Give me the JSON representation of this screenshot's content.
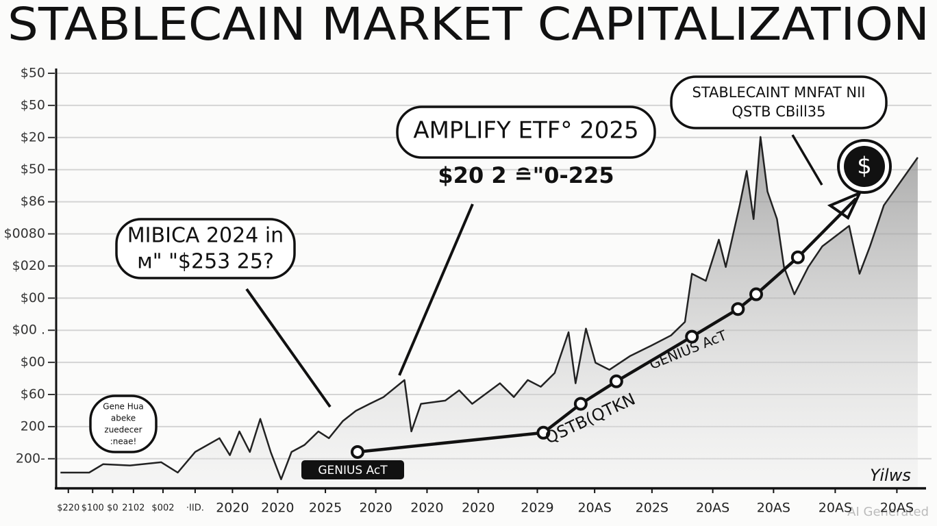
{
  "chart_data": {
    "type": "line",
    "title": "STABLECAIN MARKET CAPITALIZATION",
    "xlim": [
      0,
      100
    ],
    "xticks": [
      {
        "value": 1.4,
        "label": "$220"
      },
      {
        "value": 4.2,
        "label": "$100"
      },
      {
        "value": 6.5,
        "label": "$0"
      },
      {
        "value": 8.9,
        "label": "2102"
      },
      {
        "value": 12.3,
        "label": "$002"
      },
      {
        "value": 16.0,
        "label": "·ІІD."
      },
      {
        "value": 20.3,
        "label": "2020"
      },
      {
        "value": 25.5,
        "label": "2020"
      },
      {
        "value": 31.0,
        "label": "2025"
      },
      {
        "value": 36.8,
        "label": "2020"
      },
      {
        "value": 42.7,
        "label": "2020"
      },
      {
        "value": 48.6,
        "label": "2020"
      },
      {
        "value": 55.4,
        "label": "2029"
      },
      {
        "value": 62.0,
        "label": "20AS"
      },
      {
        "value": 68.6,
        "label": "202S"
      },
      {
        "value": 75.6,
        "label": "20AS"
      },
      {
        "value": 82.6,
        "label": "20AS"
      },
      {
        "value": 89.7,
        "label": "20AS"
      },
      {
        "value": 96.8,
        "label": "20AS"
      }
    ],
    "ylim": [
      -0.9,
      12
    ],
    "yticks": [
      {
        "value": 0,
        "label": "200-"
      },
      {
        "value": 1,
        "label": "200"
      },
      {
        "value": 2,
        "label": "$60"
      },
      {
        "value": 3,
        "label": "$00"
      },
      {
        "value": 4,
        "label": "$00 ."
      },
      {
        "value": 5,
        "label": "$00"
      },
      {
        "value": 6,
        "label": "$020"
      },
      {
        "value": 7,
        "label": "$0080"
      },
      {
        "value": 8,
        "label": "$86"
      },
      {
        "value": 9,
        "label": "$50"
      },
      {
        "value": 10,
        "label": "$20"
      },
      {
        "value": 11,
        "label": "$50"
      },
      {
        "value": 12,
        "label": "$50"
      }
    ],
    "grid": true,
    "series": [
      {
        "color": "#222222",
        "x": [
          0.5,
          3.8,
          5.4,
          8.5,
          12.1,
          14.0,
          16.0,
          18.8,
          20.0,
          21.1,
          22.3,
          23.5,
          24.7,
          25.9,
          27.1,
          28.6,
          30.2,
          31.4,
          33.0,
          34.5,
          36.1,
          37.7,
          40.1,
          40.9,
          42.0,
          44.8,
          46.4,
          47.9,
          51.1,
          52.7,
          54.3,
          55.8,
          57.4,
          59.0,
          59.8,
          61.0,
          62.1,
          63.7,
          66.1,
          68.5,
          70.8,
          72.4,
          73.2,
          74.8,
          76.3,
          77.1,
          78.7,
          79.5,
          80.3,
          81.1,
          81.9,
          83.0,
          83.8,
          85.0,
          86.6,
          88.2,
          91.3,
          92.5,
          93.7,
          95.3,
          99.2
        ],
        "values": [
          -0.43,
          -0.43,
          -0.17,
          -0.21,
          -0.11,
          -0.43,
          0.21,
          0.64,
          0.11,
          0.85,
          0.21,
          1.24,
          0.21,
          -0.64,
          0.21,
          0.43,
          0.85,
          0.64,
          1.17,
          1.49,
          1.71,
          1.92,
          2.45,
          0.85,
          1.71,
          1.81,
          2.13,
          1.71,
          2.35,
          1.92,
          2.45,
          2.24,
          2.67,
          3.94,
          2.35,
          4.05,
          2.99,
          2.77,
          3.2,
          3.52,
          3.84,
          4.26,
          5.76,
          5.54,
          6.82,
          5.97,
          7.89,
          8.96,
          7.46,
          10.02,
          8.32,
          7.46,
          5.97,
          5.12,
          5.97,
          6.61,
          7.25,
          5.76,
          6.61,
          7.89,
          9.38
        ]
      },
      {
        "color": "#111111",
        "x": [
          34.7,
          56.1,
          60.4,
          64.5,
          73.2,
          78.5,
          80.6,
          85.4,
          92.1
        ],
        "values": [
          0.21,
          0.81,
          1.71,
          2.41,
          3.8,
          4.66,
          5.12,
          6.27,
          8.1
        ]
      }
    ],
    "annotations": [
      {
        "lines": [
          "MIBICA 2024 in",
          "м\" \"$253 25?"
        ]
      },
      {
        "lines": [
          "AMPLIFY ETF° 2025"
        ]
      },
      {
        "lines": [
          "$20 2 ≘\"0-225"
        ]
      },
      {
        "lines": [
          "STABLECAINT MNFAT NII",
          "QSTB CBill35"
        ]
      },
      {
        "lines": [
          "Gene Hua",
          "abeke",
          "zuedecer",
          ":neae!"
        ]
      },
      {
        "lines": [
          "GENIUS AcT"
        ]
      },
      {
        "lines": [
          "QSTB(QTKN"
        ]
      },
      {
        "lines": [
          "GENIUS AcT"
        ]
      },
      {
        "lines": [
          "$"
        ]
      },
      {
        "lines": [
          "Yilws"
        ]
      }
    ],
    "watermark": "AI Generated"
  }
}
